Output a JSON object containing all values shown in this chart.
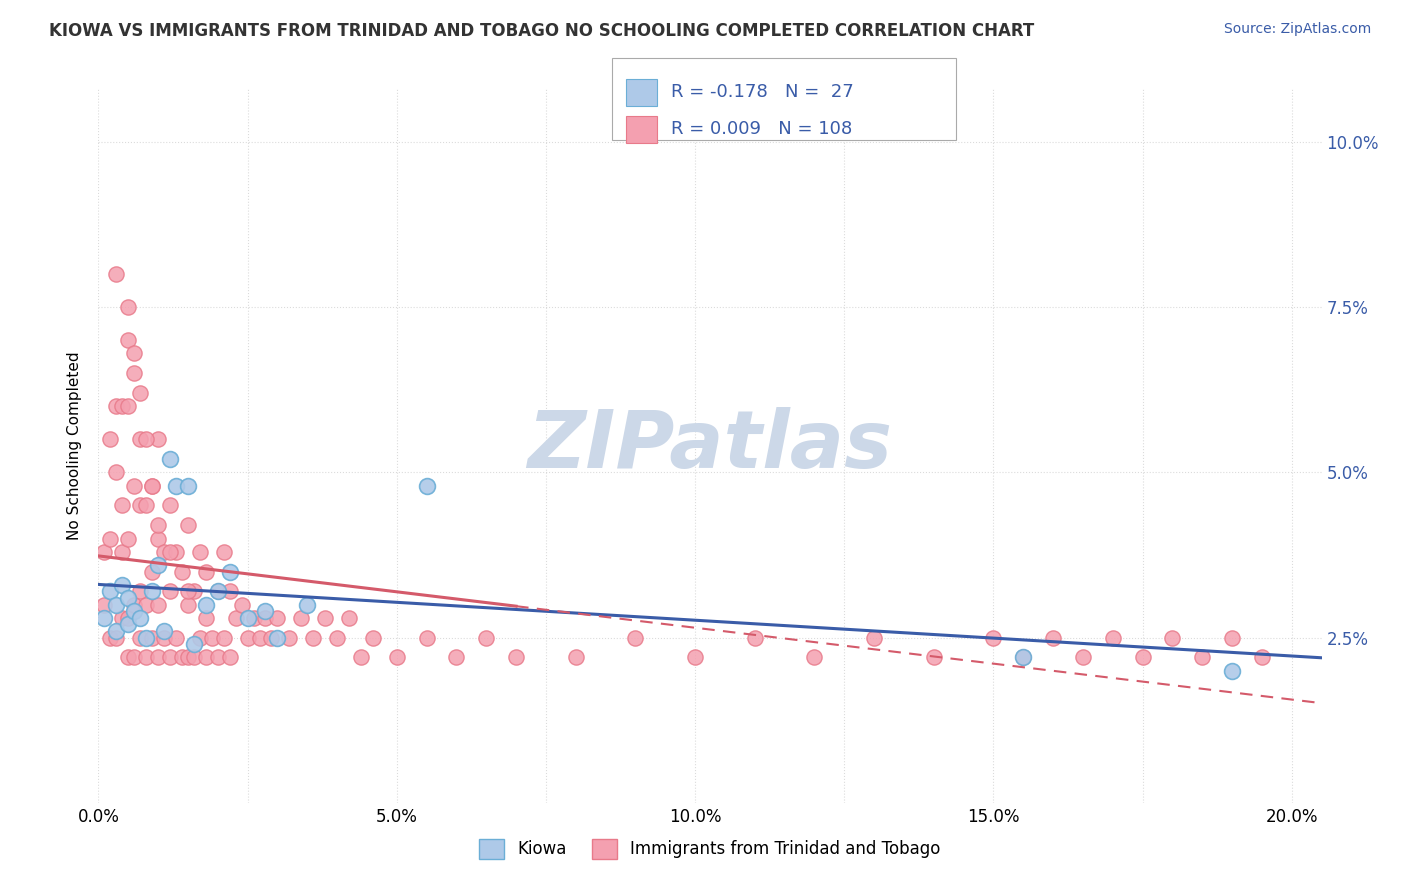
{
  "title": "KIOWA VS IMMIGRANTS FROM TRINIDAD AND TOBAGO NO SCHOOLING COMPLETED CORRELATION CHART",
  "source_text": "Source: ZipAtlas.com",
  "ylabel": "No Schooling Completed",
  "xlim": [
    0.0,
    0.205
  ],
  "ylim": [
    0.0,
    0.108
  ],
  "xtick_labels": [
    "0.0%",
    "",
    "5.0%",
    "",
    "10.0%",
    "",
    "15.0%",
    "",
    "20.0%"
  ],
  "xtick_vals": [
    0.0,
    0.025,
    0.05,
    0.075,
    0.1,
    0.125,
    0.15,
    0.175,
    0.2
  ],
  "ytick_labels_right": [
    "2.5%",
    "5.0%",
    "7.5%",
    "10.0%"
  ],
  "ytick_vals_right": [
    0.025,
    0.05,
    0.075,
    0.1
  ],
  "kiowa_color_fill": "#aec9e8",
  "kiowa_color_edge": "#6baed6",
  "immigrants_color_fill": "#f4a0b0",
  "immigrants_color_edge": "#e87a8a",
  "line_kiowa_color": "#3a5ca8",
  "line_immig_color": "#d45a6a",
  "legend_text_color": "#3a5ca8",
  "legend_R1": "R = -0.178",
  "legend_N1": "N =  27",
  "legend_R2": "R = 0.009",
  "legend_N2": "N = 108",
  "legend_label1": "Kiowa",
  "legend_label2": "Immigrants from Trinidad and Tobago",
  "watermark": "ZIPatlas",
  "watermark_color": "#ccd8e8",
  "background_color": "#ffffff",
  "grid_color": "#cccccc",
  "title_color": "#333333",
  "source_color": "#3a5ca8",
  "kiowa_x": [
    0.001,
    0.002,
    0.003,
    0.003,
    0.004,
    0.005,
    0.005,
    0.006,
    0.007,
    0.008,
    0.009,
    0.01,
    0.011,
    0.012,
    0.013,
    0.015,
    0.016,
    0.018,
    0.02,
    0.022,
    0.025,
    0.028,
    0.03,
    0.035,
    0.055,
    0.155,
    0.19
  ],
  "kiowa_y": [
    0.028,
    0.032,
    0.03,
    0.026,
    0.033,
    0.027,
    0.031,
    0.029,
    0.028,
    0.025,
    0.032,
    0.036,
    0.026,
    0.052,
    0.048,
    0.048,
    0.024,
    0.03,
    0.032,
    0.035,
    0.028,
    0.029,
    0.025,
    0.03,
    0.048,
    0.022,
    0.02
  ],
  "immig_x": [
    0.001,
    0.001,
    0.002,
    0.002,
    0.002,
    0.003,
    0.003,
    0.003,
    0.004,
    0.004,
    0.004,
    0.004,
    0.005,
    0.005,
    0.005,
    0.005,
    0.005,
    0.006,
    0.006,
    0.006,
    0.006,
    0.007,
    0.007,
    0.007,
    0.007,
    0.008,
    0.008,
    0.008,
    0.009,
    0.009,
    0.009,
    0.01,
    0.01,
    0.01,
    0.01,
    0.011,
    0.011,
    0.012,
    0.012,
    0.012,
    0.013,
    0.013,
    0.014,
    0.014,
    0.015,
    0.015,
    0.015,
    0.016,
    0.016,
    0.017,
    0.017,
    0.018,
    0.018,
    0.019,
    0.02,
    0.02,
    0.021,
    0.021,
    0.022,
    0.022,
    0.023,
    0.024,
    0.025,
    0.026,
    0.027,
    0.028,
    0.029,
    0.03,
    0.032,
    0.034,
    0.036,
    0.038,
    0.04,
    0.042,
    0.044,
    0.046,
    0.05,
    0.055,
    0.06,
    0.065,
    0.07,
    0.08,
    0.09,
    0.1,
    0.11,
    0.12,
    0.13,
    0.14,
    0.15,
    0.155,
    0.16,
    0.165,
    0.17,
    0.175,
    0.18,
    0.185,
    0.19,
    0.195,
    0.003,
    0.005,
    0.006,
    0.007,
    0.008,
    0.009,
    0.01,
    0.012,
    0.015,
    0.018
  ],
  "immig_y": [
    0.03,
    0.038,
    0.025,
    0.04,
    0.055,
    0.025,
    0.05,
    0.06,
    0.028,
    0.038,
    0.045,
    0.06,
    0.022,
    0.028,
    0.04,
    0.06,
    0.075,
    0.022,
    0.03,
    0.048,
    0.065,
    0.025,
    0.032,
    0.045,
    0.055,
    0.022,
    0.03,
    0.045,
    0.025,
    0.035,
    0.048,
    0.022,
    0.03,
    0.04,
    0.055,
    0.025,
    0.038,
    0.022,
    0.032,
    0.045,
    0.025,
    0.038,
    0.022,
    0.035,
    0.022,
    0.03,
    0.042,
    0.022,
    0.032,
    0.025,
    0.038,
    0.022,
    0.035,
    0.025,
    0.022,
    0.032,
    0.025,
    0.038,
    0.022,
    0.032,
    0.028,
    0.03,
    0.025,
    0.028,
    0.025,
    0.028,
    0.025,
    0.028,
    0.025,
    0.028,
    0.025,
    0.028,
    0.025,
    0.028,
    0.022,
    0.025,
    0.022,
    0.025,
    0.022,
    0.025,
    0.022,
    0.022,
    0.025,
    0.022,
    0.025,
    0.022,
    0.025,
    0.022,
    0.025,
    0.022,
    0.025,
    0.022,
    0.025,
    0.022,
    0.025,
    0.022,
    0.025,
    0.022,
    0.08,
    0.07,
    0.068,
    0.062,
    0.055,
    0.048,
    0.042,
    0.038,
    0.032,
    0.028
  ]
}
